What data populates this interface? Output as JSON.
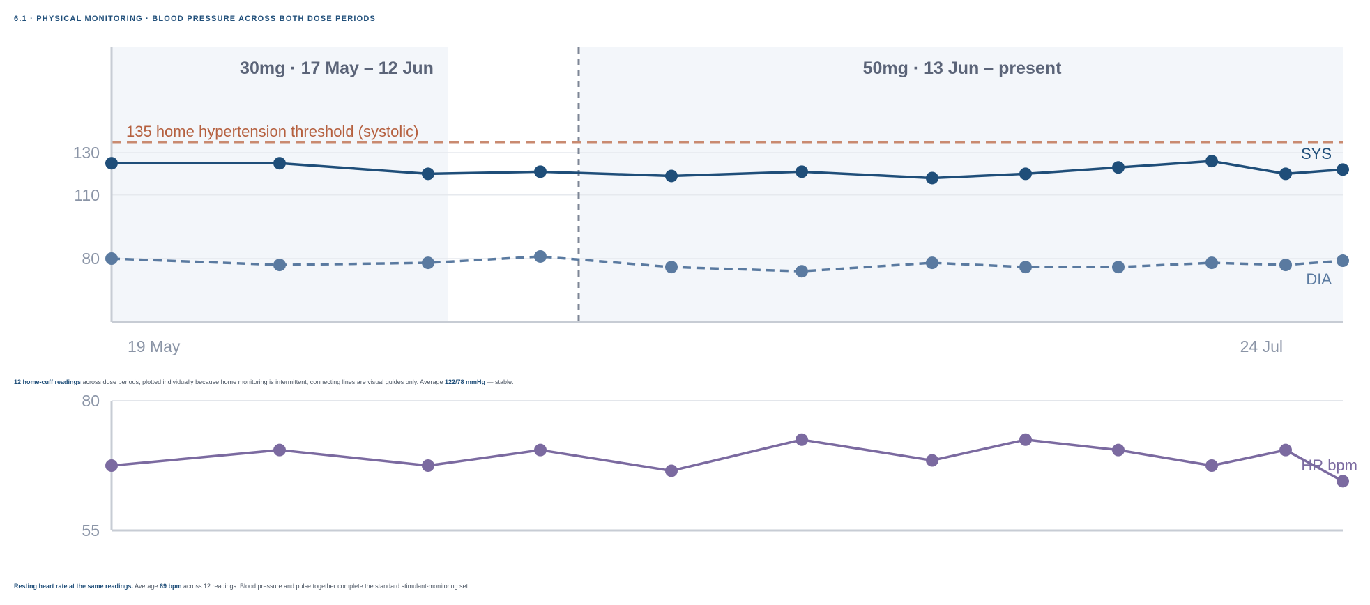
{
  "section": {
    "title": "6.1 · Physical monitoring · Blood pressure across both dose periods"
  },
  "colors": {
    "systolic": "#1f4e79",
    "diastolic": "#5a7aa0",
    "heart_rate": "#7b6aa0",
    "threshold": "#c98a70",
    "period_band": "#f3f6fa",
    "axis": "#c7ccd4"
  },
  "chart_data": [
    {
      "type": "line",
      "title": "",
      "periods": [
        {
          "label": "30mg · 17 May – 12 Jun",
          "start_index": 0,
          "end_index": 3
        },
        {
          "label": "50mg · 13 Jun – present",
          "start_index": 4,
          "end_index": 11
        }
      ],
      "x_tick_labels": [
        "19 May",
        "24 Jul"
      ],
      "y_ticks": [
        80,
        110,
        130
      ],
      "ylim": [
        55,
        150
      ],
      "threshold": {
        "value": 135,
        "label": "135 home hypertension threshold (systolic)"
      },
      "series": [
        {
          "name": "SYS",
          "style": "solid",
          "values": [
            125,
            125,
            120,
            121,
            119,
            121,
            118,
            120,
            123,
            126,
            120,
            122
          ]
        },
        {
          "name": "DIA",
          "style": "dashed",
          "values": [
            80,
            77,
            78,
            81,
            76,
            74,
            78,
            76,
            76,
            78,
            77,
            79
          ]
        }
      ]
    },
    {
      "type": "line",
      "title": "",
      "y_ticks": [
        55,
        80
      ],
      "ylim": [
        55,
        80
      ],
      "series": [
        {
          "name": "HR bpm",
          "style": "solid",
          "values": [
            67.5,
            70.5,
            67.5,
            70.5,
            66.5,
            72.5,
            68.5,
            72.5,
            70.5,
            67.5,
            70.5,
            64.5
          ]
        }
      ]
    }
  ],
  "captions": {
    "bp": {
      "lead": "12 home-cuff readings",
      "middle": " across dose periods, plotted individually because home monitoring is intermittent; connecting lines are visual guides only. Average ",
      "avg": "122/78 mmHg",
      "tail": " — stable."
    },
    "hr": {
      "lead": "Resting heart rate at the same readings.",
      "middle": " Average ",
      "avg": "69 bpm",
      "tail": " across 12 readings. Blood pressure and pulse together complete the standard stimulant-monitoring set."
    }
  }
}
